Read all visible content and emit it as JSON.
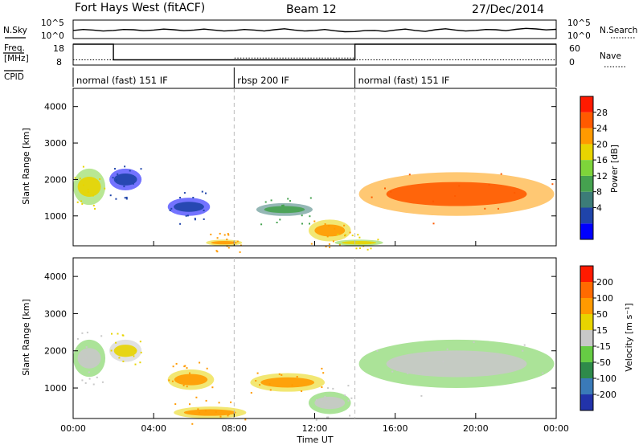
{
  "header": {
    "station": "Fort Hays West (fitACF)",
    "beam": "Beam 12",
    "date": "27/Dec/2014"
  },
  "colors": {
    "power": [
      "#0000ff",
      "#1f44aa",
      "#3c7c78",
      "#45a24f",
      "#7ed43a",
      "#e8d400",
      "#ff9a00",
      "#ff5a00",
      "#ff1a00"
    ],
    "velocity": [
      "#2233aa",
      "#3a7ab8",
      "#2e8a4a",
      "#66cc44",
      "#c8c8c8",
      "#e8d400",
      "#ff9a00",
      "#ff6a00",
      "#ff1a00"
    ]
  },
  "chart_data": [
    {
      "type": "line",
      "name": "noise-panel",
      "left_labels": [
        "N.Sky"
      ],
      "right_labels": [
        "N.Search"
      ],
      "y_ticks_left": [
        "10^5",
        "10^0"
      ],
      "y_ticks_right": [
        "10^5",
        "10^0"
      ],
      "x": [
        0,
        1,
        2,
        3,
        4,
        5,
        6,
        7,
        8,
        9,
        10,
        11,
        12,
        13,
        14,
        15,
        16,
        17,
        18,
        19,
        20,
        21,
        22,
        23,
        24
      ],
      "values": [
        2.2,
        2.3,
        2.2,
        2.4,
        2.3,
        2.4,
        2.3,
        2.3,
        2.2,
        2.3,
        2.4,
        2.3,
        2.2,
        2.1,
        1.9,
        2.2,
        2.3,
        2.2,
        2.4,
        2.3,
        2.2,
        2.4,
        2.5,
        2.6,
        2.5
      ]
    },
    {
      "type": "line",
      "name": "freq-nave-panel",
      "left_labels": [
        "Freq.",
        "[MHz]"
      ],
      "right_labels": [
        "Nave"
      ],
      "y_ticks_left": [
        "18",
        "8"
      ],
      "y_ticks_right": [
        "60",
        "0"
      ],
      "series": [
        {
          "name": "Freq.",
          "x": [
            0,
            2,
            2,
            14,
            14,
            24
          ],
          "values": [
            18,
            18,
            10.5,
            10.5,
            18,
            18
          ]
        },
        {
          "name": "Nave",
          "x": [
            0,
            8,
            8,
            14,
            14,
            24
          ],
          "values": [
            15,
            15,
            20,
            20,
            15,
            15
          ]
        }
      ]
    },
    {
      "type": "table",
      "name": "cpid-panel",
      "label": "CPID",
      "modes": [
        {
          "start": 0,
          "end": 8,
          "label": "normal (fast) 151 IF"
        },
        {
          "start": 8,
          "end": 14,
          "label": "rbsp 200 IF"
        },
        {
          "start": 14,
          "end": 24,
          "label": "normal (fast) 151 IF"
        }
      ]
    },
    {
      "type": "heatmap",
      "name": "power-panel",
      "ylabel": "Slant Range [km]",
      "y_ticks": [
        "4000",
        "3000",
        "2000",
        "1000"
      ],
      "xlim": [
        0,
        24
      ],
      "ylim": [
        180,
        4500
      ],
      "colorbar": {
        "label": "Power [dB]",
        "ticks": [
          "28",
          "24",
          "20",
          "16",
          "12",
          "8",
          "4"
        ]
      },
      "regions": [
        {
          "t0": 0.0,
          "t1": 1.6,
          "r0": 1300,
          "r1": 2300,
          "level": 5
        },
        {
          "t0": 1.8,
          "t1": 3.4,
          "r0": 1700,
          "r1": 2300,
          "level": 1
        },
        {
          "t0": 4.7,
          "t1": 6.8,
          "r0": 1000,
          "r1": 1500,
          "level": 1
        },
        {
          "t0": 9.1,
          "t1": 11.9,
          "r0": 1000,
          "r1": 1350,
          "level": 3
        },
        {
          "t0": 11.7,
          "t1": 13.8,
          "r0": 300,
          "r1": 900,
          "level": 6
        },
        {
          "t0": 14.2,
          "t1": 23.9,
          "r0": 1000,
          "r1": 2200,
          "level": 7
        },
        {
          "t0": 6.6,
          "t1": 8.4,
          "r0": 180,
          "r1": 350,
          "level": 6
        },
        {
          "t0": 13.0,
          "t1": 15.4,
          "r0": 180,
          "r1": 350,
          "level": 5
        }
      ]
    },
    {
      "type": "heatmap",
      "name": "velocity-panel",
      "ylabel": "Slant Range [km]",
      "y_ticks": [
        "4000",
        "3000",
        "2000",
        "1000"
      ],
      "xlim": [
        0,
        24
      ],
      "ylim": [
        180,
        4500
      ],
      "xlabel": "Time UT",
      "x_ticks": [
        "00:00",
        "04:00",
        "08:00",
        "12:00",
        "16:00",
        "20:00",
        "00:00"
      ],
      "colorbar": {
        "label": "Velocity [m s⁻¹]",
        "ticks": [
          "200",
          "100",
          "50",
          "15",
          "-15",
          "-50",
          "-100",
          "-200"
        ]
      },
      "regions": [
        {
          "t0": 0.0,
          "t1": 1.6,
          "r0": 1300,
          "r1": 2300,
          "level": 4
        },
        {
          "t0": 1.8,
          "t1": 3.4,
          "r0": 1700,
          "r1": 2300,
          "level": 5
        },
        {
          "t0": 4.7,
          "t1": 7.0,
          "r0": 950,
          "r1": 1500,
          "level": 6
        },
        {
          "t0": 8.8,
          "t1": 12.5,
          "r0": 900,
          "r1": 1400,
          "level": 6
        },
        {
          "t0": 11.7,
          "t1": 13.8,
          "r0": 300,
          "r1": 900,
          "level": 4
        },
        {
          "t0": 14.2,
          "t1": 23.9,
          "r0": 1000,
          "r1": 2300,
          "level": 4
        },
        {
          "t0": 5.0,
          "t1": 8.6,
          "r0": 180,
          "r1": 500,
          "level": 6
        }
      ]
    }
  ]
}
